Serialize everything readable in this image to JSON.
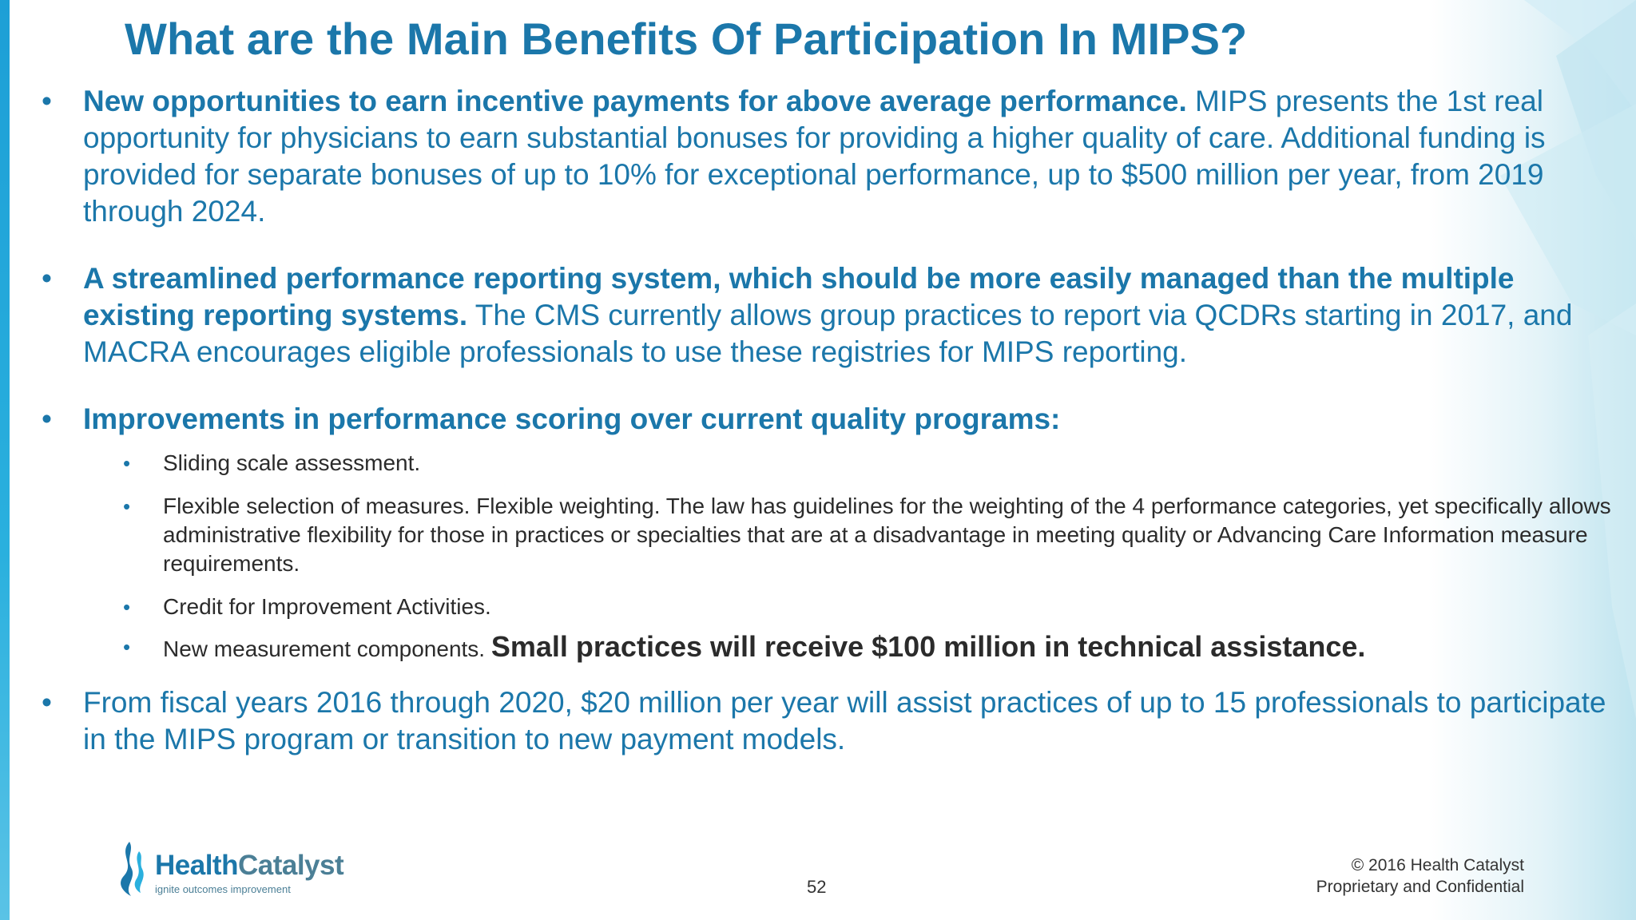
{
  "colors": {
    "accent": "#1b77aa",
    "body_text": "#2b2b2b",
    "left_bar": "#1d9fd6"
  },
  "slide": {
    "title": "What are the Main Benefits Of Participation In MIPS?",
    "bullet1": {
      "bold": "New opportunities to earn incentive payments for above average performance.",
      "text": " MIPS presents the 1st real opportunity for physicians to earn substantial bonuses for providing a higher quality of care. Additional funding is provided for separate bonuses of up to 10% for exceptional performance, up to $500 million per year, from 2019 through 2024."
    },
    "bullet2": {
      "bold": "A streamlined performance reporting system, which should be more easily managed than the multiple existing reporting systems.",
      "text": " The CMS currently allows group practices to report via QCDRs starting in 2017, and MACRA encourages eligible professionals to use these registries for MIPS reporting."
    },
    "bullet3": {
      "bold": "Improvements in performance scoring over current quality programs:",
      "sub": [
        {
          "text": "Sliding scale assessment."
        },
        {
          "text": "Flexible selection of measures. Flexible weighting. The law has guidelines for the weighting of the 4 performance categories, yet specifically allows administrative flexibility for those in practices or specialties that are at a disadvantage in meeting quality or Advancing Care Information measure requirements."
        },
        {
          "text": "Credit for Improvement Activities."
        },
        {
          "text": "New measurement components. ",
          "bold": "Small practices will receive $100 million in technical assistance."
        }
      ]
    },
    "bullet4": {
      "text": "From fiscal years 2016 through 2020, $20 million per year will assist practices of up to 15 professionals to participate in the MIPS program or transition to new payment models."
    },
    "bullet_char": "•",
    "sub_bullet_char": "•"
  },
  "footer": {
    "logo_health": "Health",
    "logo_catalyst": "Catalyst",
    "logo_tagline": "ignite outcomes improvement",
    "page_number": "52",
    "copyright": "© 2016 Health Catalyst",
    "confidential": "Proprietary and Confidential"
  }
}
